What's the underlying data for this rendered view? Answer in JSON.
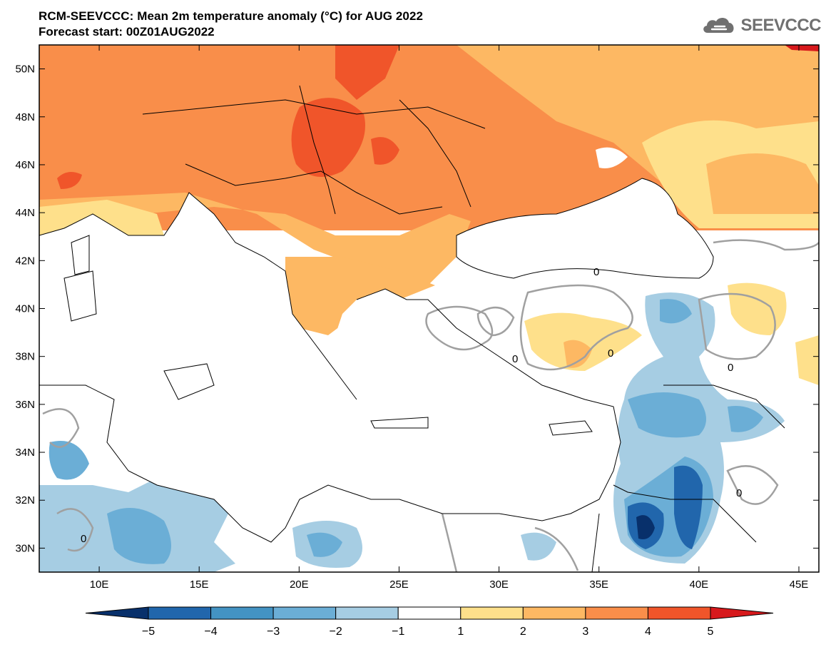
{
  "header": {
    "title": "RCM-SEEVCCC: Mean 2m temperature anomaly (°C) for AUG 2022",
    "forecast_start": "Forecast start: 00Z01AUG2022"
  },
  "logo": {
    "text": "SEEVCCC",
    "icon": "cloud-icon"
  },
  "map": {
    "projection": "lat-lon",
    "lon_range": [
      7,
      46
    ],
    "lat_range": [
      29,
      51
    ],
    "lon_ticks": [
      {
        "value": 10,
        "label": "10E"
      },
      {
        "value": 15,
        "label": "15E"
      },
      {
        "value": 20,
        "label": "20E"
      },
      {
        "value": 25,
        "label": "25E"
      },
      {
        "value": 30,
        "label": "30E"
      },
      {
        "value": 35,
        "label": "35E"
      },
      {
        "value": 40,
        "label": "40E"
      },
      {
        "value": 45,
        "label": "45E"
      }
    ],
    "lat_ticks": [
      {
        "value": 30,
        "label": "30N"
      },
      {
        "value": 32,
        "label": "32N"
      },
      {
        "value": 34,
        "label": "34N"
      },
      {
        "value": 36,
        "label": "36N"
      },
      {
        "value": 38,
        "label": "38N"
      },
      {
        "value": 40,
        "label": "40N"
      },
      {
        "value": 42,
        "label": "42N"
      },
      {
        "value": 44,
        "label": "44N"
      },
      {
        "value": 46,
        "label": "46N"
      },
      {
        "value": 48,
        "label": "48N"
      },
      {
        "value": 50,
        "label": "50N"
      }
    ],
    "zero_contour_label": "0"
  },
  "colorbar": {
    "levels": [
      -5,
      -4,
      -3,
      -2,
      -1,
      1,
      2,
      3,
      4,
      5
    ],
    "labels": [
      "−5",
      "−4",
      "−3",
      "−2",
      "−1",
      "1",
      "2",
      "3",
      "4",
      "5"
    ],
    "colors": [
      "#08306b",
      "#2166ac",
      "#4393c3",
      "#6baed6",
      "#a6cde3",
      "#ffffff",
      "#fee08b",
      "#fdb863",
      "#f98e4a",
      "#f0552a",
      "#d7191c"
    ]
  }
}
